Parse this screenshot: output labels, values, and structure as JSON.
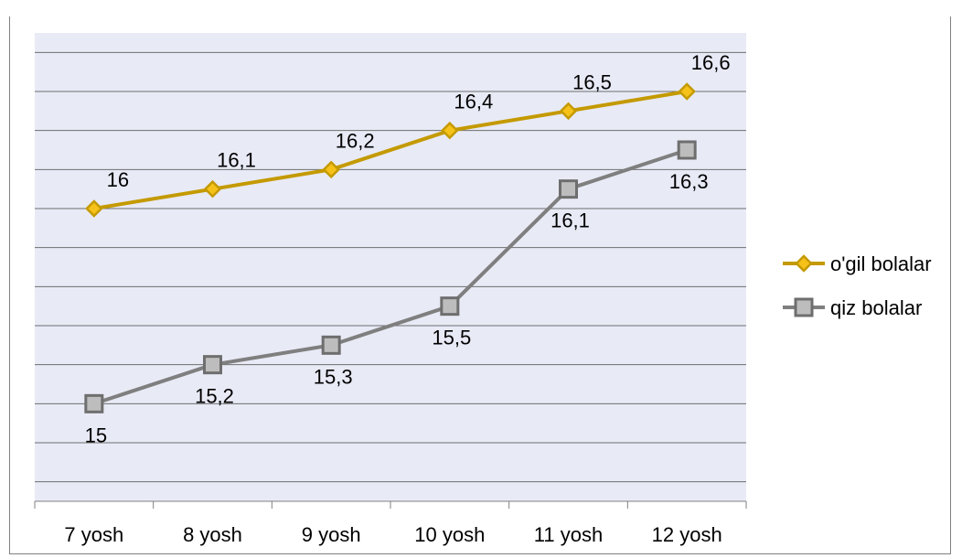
{
  "chart_data": {
    "type": "line",
    "categories": [
      "7 yosh",
      "8 yosh",
      "9 yosh",
      "10 yosh",
      "11 yosh",
      "12 yosh"
    ],
    "series": [
      {
        "name": "o'gil bolalar",
        "values": [
          16,
          16.1,
          16.2,
          16.4,
          16.5,
          16.6
        ],
        "labels": [
          "16",
          "16,1",
          "16,2",
          "16,4",
          "16,5",
          "16,6"
        ],
        "color": "#c49a00",
        "marker": "diamond"
      },
      {
        "name": "qiz bolalar",
        "values": [
          15,
          15.2,
          15.3,
          15.5,
          16.1,
          16.3
        ],
        "labels": [
          "15",
          "15,2",
          "15,3",
          "15,5",
          "16,1",
          "16,3"
        ],
        "color": "#7f7f7f",
        "marker": "square"
      }
    ],
    "ylim": [
      14.5,
      16.9
    ],
    "grid": true,
    "plot_background": "#e8eaf6",
    "legend_position": "right",
    "y_tick_labels_shown": false
  }
}
